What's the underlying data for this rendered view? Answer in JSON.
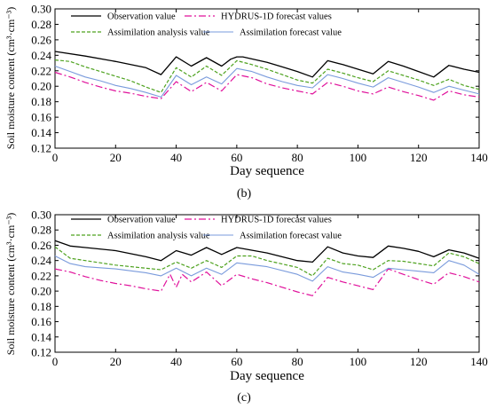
{
  "legend": {
    "observation": "Observation value",
    "hydrus": "HYDRUS-1D forecast values",
    "analysis": "Assimilation analysis value",
    "forecast": "Assimilation forecast value"
  },
  "colors": {
    "observation": "#000000",
    "hydrus": "#e0119b",
    "analysis": "#4ea21f",
    "forecast": "#7a9bdc"
  },
  "chart_data": [
    {
      "type": "line",
      "caption": "(b)",
      "xlabel": "Day sequence",
      "ylabel": "Soil moisture content (cm³·cm⁻³)",
      "xlim": [
        0,
        140
      ],
      "ylim": [
        0.12,
        0.3
      ],
      "xticks": [
        0,
        20,
        40,
        60,
        80,
        100,
        120,
        140
      ],
      "yticks": [
        0.12,
        0.14,
        0.16,
        0.18,
        0.2,
        0.22,
        0.24,
        0.26,
        0.28,
        0.3
      ],
      "grid": false,
      "legend_position": "top",
      "series": [
        {
          "key": "observation",
          "name": "Observation value",
          "x": [
            0,
            10,
            20,
            30,
            35,
            40,
            45,
            50,
            55,
            58,
            60,
            62,
            70,
            75,
            80,
            85,
            90,
            95,
            100,
            105,
            110,
            115,
            120,
            125,
            130,
            135,
            140
          ],
          "y": [
            0.245,
            0.239,
            0.232,
            0.224,
            0.215,
            0.238,
            0.226,
            0.237,
            0.226,
            0.235,
            0.238,
            0.238,
            0.231,
            0.225,
            0.219,
            0.212,
            0.233,
            0.228,
            0.222,
            0.216,
            0.232,
            0.226,
            0.219,
            0.212,
            0.227,
            0.222,
            0.218
          ]
        },
        {
          "key": "hydrus",
          "name": "HYDRUS-1D forecast values",
          "x": [
            0,
            5,
            10,
            15,
            20,
            25,
            30,
            35,
            40,
            45,
            50,
            55,
            60,
            65,
            70,
            75,
            80,
            85,
            90,
            95,
            100,
            105,
            110,
            115,
            120,
            125,
            130,
            135,
            140
          ],
          "y": [
            0.218,
            0.212,
            0.205,
            0.199,
            0.194,
            0.191,
            0.187,
            0.184,
            0.206,
            0.193,
            0.205,
            0.194,
            0.215,
            0.211,
            0.203,
            0.198,
            0.194,
            0.19,
            0.205,
            0.2,
            0.194,
            0.19,
            0.199,
            0.193,
            0.188,
            0.182,
            0.194,
            0.189,
            0.186
          ]
        },
        {
          "key": "analysis",
          "name": "Assimilation analysis value",
          "x": [
            0,
            5,
            10,
            15,
            20,
            25,
            30,
            35,
            40,
            45,
            50,
            55,
            60,
            65,
            70,
            75,
            80,
            85,
            90,
            95,
            100,
            105,
            110,
            115,
            120,
            125,
            130,
            135,
            140
          ],
          "y": [
            0.234,
            0.232,
            0.225,
            0.219,
            0.213,
            0.207,
            0.199,
            0.192,
            0.224,
            0.212,
            0.226,
            0.214,
            0.233,
            0.228,
            0.222,
            0.215,
            0.208,
            0.204,
            0.222,
            0.217,
            0.211,
            0.206,
            0.22,
            0.214,
            0.208,
            0.201,
            0.209,
            0.201,
            0.196
          ]
        },
        {
          "key": "forecast",
          "name": "Assimilation forecast value",
          "x": [
            0,
            5,
            10,
            15,
            20,
            25,
            30,
            35,
            40,
            45,
            50,
            55,
            60,
            65,
            70,
            75,
            80,
            85,
            90,
            95,
            100,
            105,
            110,
            115,
            120,
            125,
            130,
            135,
            140
          ],
          "y": [
            0.226,
            0.219,
            0.212,
            0.207,
            0.201,
            0.197,
            0.192,
            0.186,
            0.214,
            0.202,
            0.212,
            0.203,
            0.223,
            0.219,
            0.212,
            0.206,
            0.201,
            0.198,
            0.215,
            0.21,
            0.204,
            0.199,
            0.211,
            0.205,
            0.199,
            0.192,
            0.2,
            0.195,
            0.19
          ]
        }
      ]
    },
    {
      "type": "line",
      "caption": "(c)",
      "xlabel": "Day sequence",
      "ylabel": "Soil moisture content (cm³·cm⁻³)",
      "xlim": [
        0,
        140
      ],
      "ylim": [
        0.12,
        0.3
      ],
      "xticks": [
        0,
        20,
        40,
        60,
        80,
        100,
        120,
        140
      ],
      "yticks": [
        0.12,
        0.14,
        0.16,
        0.18,
        0.2,
        0.22,
        0.24,
        0.26,
        0.28,
        0.3
      ],
      "grid": false,
      "legend_position": "top",
      "series": [
        {
          "key": "observation",
          "name": "Observation value",
          "x": [
            0,
            5,
            10,
            20,
            30,
            35,
            40,
            45,
            50,
            55,
            60,
            70,
            80,
            85,
            90,
            95,
            100,
            105,
            110,
            115,
            120,
            125,
            130,
            135,
            140
          ],
          "y": [
            0.266,
            0.259,
            0.257,
            0.253,
            0.245,
            0.24,
            0.253,
            0.247,
            0.257,
            0.248,
            0.257,
            0.25,
            0.24,
            0.238,
            0.258,
            0.25,
            0.246,
            0.244,
            0.259,
            0.256,
            0.252,
            0.245,
            0.254,
            0.25,
            0.243
          ]
        },
        {
          "key": "hydrus",
          "name": "HYDRUS-1D forecast values",
          "x": [
            0,
            5,
            10,
            15,
            20,
            25,
            30,
            35,
            38,
            40,
            42,
            45,
            50,
            55,
            60,
            65,
            70,
            75,
            80,
            85,
            90,
            95,
            100,
            105,
            110,
            115,
            120,
            125,
            130,
            135,
            140
          ],
          "y": [
            0.229,
            0.225,
            0.219,
            0.214,
            0.21,
            0.207,
            0.203,
            0.2,
            0.222,
            0.205,
            0.222,
            0.212,
            0.225,
            0.207,
            0.222,
            0.216,
            0.211,
            0.205,
            0.199,
            0.194,
            0.218,
            0.212,
            0.207,
            0.202,
            0.229,
            0.222,
            0.215,
            0.209,
            0.224,
            0.219,
            0.212
          ]
        },
        {
          "key": "analysis",
          "name": "Assimilation analysis value",
          "x": [
            0,
            5,
            10,
            20,
            30,
            35,
            40,
            45,
            50,
            55,
            60,
            65,
            70,
            80,
            85,
            90,
            95,
            100,
            105,
            110,
            115,
            120,
            125,
            130,
            135,
            140
          ],
          "y": [
            0.258,
            0.243,
            0.24,
            0.234,
            0.23,
            0.228,
            0.238,
            0.23,
            0.24,
            0.231,
            0.246,
            0.246,
            0.24,
            0.231,
            0.22,
            0.243,
            0.236,
            0.234,
            0.228,
            0.24,
            0.239,
            0.236,
            0.233,
            0.25,
            0.245,
            0.236
          ]
        },
        {
          "key": "forecast",
          "name": "Assimilation forecast value",
          "x": [
            0,
            5,
            10,
            20,
            30,
            35,
            40,
            45,
            50,
            55,
            60,
            70,
            80,
            85,
            90,
            95,
            100,
            105,
            110,
            115,
            120,
            125,
            130,
            135,
            140
          ],
          "y": [
            0.246,
            0.236,
            0.232,
            0.229,
            0.224,
            0.22,
            0.23,
            0.22,
            0.23,
            0.222,
            0.237,
            0.232,
            0.222,
            0.213,
            0.232,
            0.225,
            0.222,
            0.218,
            0.23,
            0.228,
            0.226,
            0.224,
            0.24,
            0.234,
            0.222
          ]
        }
      ]
    }
  ]
}
